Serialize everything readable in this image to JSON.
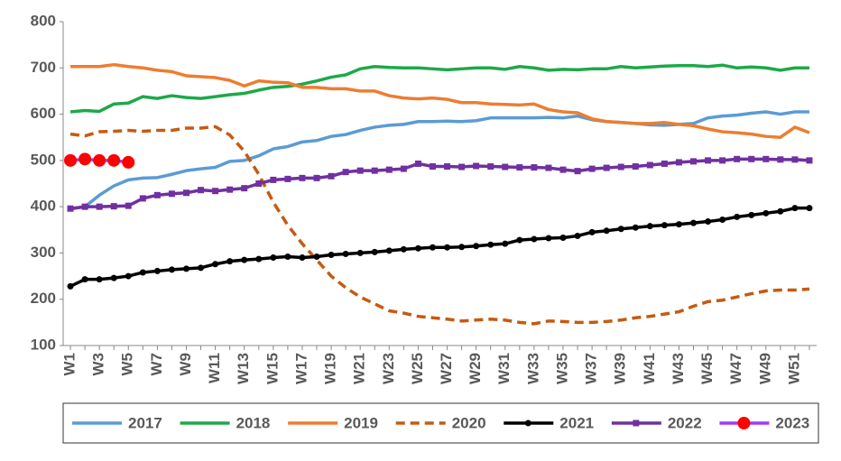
{
  "chart_data": {
    "type": "line",
    "categories": [
      "W1",
      null,
      "W3",
      null,
      "W5",
      null,
      "W7",
      null,
      "W9",
      null,
      "W11",
      null,
      "W13",
      null,
      "W15",
      null,
      "W17",
      null,
      "W19",
      null,
      "W21",
      null,
      "W23",
      null,
      "W25",
      null,
      "W27",
      null,
      "W29",
      null,
      "W31",
      null,
      "W33",
      null,
      "W35",
      null,
      "W37",
      null,
      "W39",
      null,
      "W41",
      null,
      "W43",
      null,
      "W45",
      null,
      "W47",
      null,
      "W49",
      null,
      "W51",
      null
    ],
    "ylim": [
      100,
      800
    ],
    "yticks": [
      100,
      200,
      300,
      400,
      500,
      600,
      700,
      800
    ],
    "legend": "bottom",
    "series": [
      {
        "name": "2017",
        "color": "#5b9bd5",
        "values": [
          395,
          400,
          425,
          445,
          458,
          462,
          463,
          470,
          478,
          482,
          485,
          498,
          500,
          510,
          525,
          530,
          540,
          543,
          552,
          556,
          565,
          572,
          576,
          578,
          584,
          584,
          585,
          584,
          586,
          592,
          592,
          592,
          592,
          593,
          592,
          596,
          588,
          584,
          582,
          580,
          577,
          576,
          578,
          580,
          592,
          596,
          598,
          602,
          605,
          600,
          605,
          605
        ]
      },
      {
        "name": "2018",
        "color": "#1ea84a",
        "values": [
          605,
          608,
          606,
          622,
          624,
          638,
          634,
          640,
          636,
          634,
          638,
          642,
          645,
          652,
          658,
          660,
          665,
          672,
          680,
          685,
          698,
          703,
          701,
          700,
          700,
          698,
          696,
          698,
          700,
          700,
          697,
          703,
          700,
          695,
          697,
          696,
          698,
          698,
          703,
          700,
          702,
          704,
          705,
          705,
          703,
          706,
          700,
          702,
          700,
          695,
          700,
          700
        ]
      },
      {
        "name": "2019",
        "color": "#ed7d31",
        "values": [
          703,
          703,
          703,
          707,
          703,
          700,
          695,
          692,
          683,
          681,
          679,
          673,
          661,
          672,
          669,
          668,
          658,
          658,
          655,
          655,
          650,
          650,
          640,
          635,
          633,
          635,
          632,
          625,
          625,
          622,
          621,
          620,
          622,
          610,
          605,
          603,
          590,
          584,
          582,
          580,
          580,
          582,
          578,
          575,
          568,
          562,
          560,
          557,
          552,
          550,
          572,
          560
        ]
      },
      {
        "name": "2020",
        "color": "#c55a11",
        "dashed": true,
        "values": [
          557,
          553,
          562,
          563,
          565,
          563,
          565,
          565,
          570,
          570,
          573,
          555,
          520,
          470,
          410,
          360,
          320,
          285,
          250,
          225,
          205,
          190,
          175,
          170,
          163,
          160,
          157,
          153,
          155,
          157,
          155,
          150,
          147,
          153,
          152,
          150,
          150,
          152,
          155,
          160,
          163,
          168,
          173,
          185,
          195,
          198,
          205,
          212,
          218,
          220,
          220,
          222
        ]
      },
      {
        "name": "2021",
        "color": "#000000",
        "marker": "circle",
        "marker_color": "#000000",
        "values": [
          228,
          243,
          243,
          246,
          250,
          258,
          261,
          264,
          266,
          268,
          276,
          282,
          285,
          287,
          290,
          292,
          290,
          292,
          296,
          298,
          300,
          302,
          305,
          308,
          310,
          312,
          312,
          313,
          315,
          318,
          320,
          328,
          330,
          332,
          333,
          337,
          345,
          348,
          352,
          355,
          358,
          360,
          362,
          365,
          368,
          372,
          378,
          382,
          386,
          390,
          397,
          397
        ]
      },
      {
        "name": "2022",
        "color": "#7030a0",
        "marker": "square",
        "marker_color": "#7030a0",
        "values": [
          396,
          400,
          400,
          401,
          402,
          418,
          425,
          428,
          430,
          436,
          434,
          437,
          440,
          450,
          458,
          460,
          462,
          462,
          466,
          475,
          478,
          478,
          480,
          482,
          493,
          487,
          487,
          486,
          488,
          487,
          486,
          485,
          485,
          484,
          480,
          477,
          482,
          484,
          486,
          487,
          490,
          493,
          496,
          498,
          500,
          500,
          503,
          503,
          503,
          502,
          502,
          500
        ]
      },
      {
        "name": "2023",
        "color": "#a33cf0",
        "marker": "bigcircle",
        "marker_color": "#ff0000",
        "values": [
          500,
          503,
          500,
          500,
          496,
          null,
          null,
          null,
          null,
          null,
          null,
          null,
          null,
          null,
          null,
          null,
          null,
          null,
          null,
          null,
          null,
          null,
          null,
          null,
          null,
          null,
          null,
          null,
          null,
          null,
          null,
          null,
          null,
          null,
          null,
          null,
          null,
          null,
          null,
          null,
          null,
          null,
          null,
          null,
          null,
          null,
          null,
          null,
          null,
          null,
          null,
          null
        ]
      }
    ]
  }
}
